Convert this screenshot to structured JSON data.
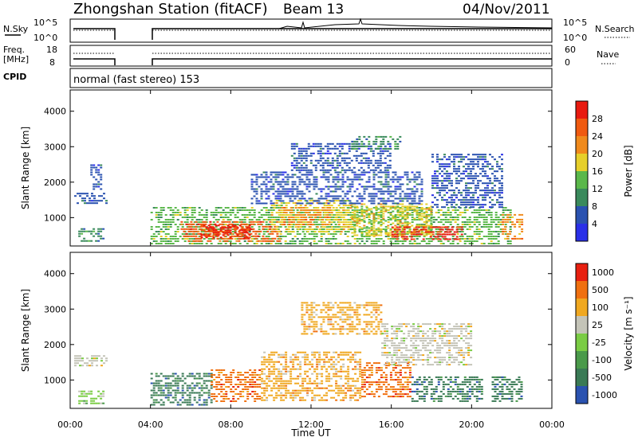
{
  "header": {
    "station_title": "Zhongshan Station (fitACF)",
    "beam": "Beam 13",
    "date": "04/Nov/2011"
  },
  "info_panels": {
    "nsky_label": "N.Sky",
    "nsky_ticks": [
      "10^5",
      "10^0"
    ],
    "nsearch_label": "N.Search",
    "nsearch_ticks": [
      "10^5",
      "10^0"
    ],
    "freq_label_1": "Freq.",
    "freq_label_2": "[MHz]",
    "freq_ticks": [
      "18",
      "8"
    ],
    "nave_label": "Nave",
    "nave_ticks": [
      "60",
      "0"
    ],
    "cpid_label": "CPID",
    "cpid_text": "normal (fast stereo) 153"
  },
  "colors": {
    "power": [
      "#2a30e8",
      "#2a52b0",
      "#3a8a5c",
      "#5ab84a",
      "#e6cf2a",
      "#f08a1c",
      "#f05a10",
      "#e81a10"
    ],
    "velocity": [
      "#2a52b0",
      "#3a7a55",
      "#4a9a4a",
      "#7acc44",
      "#c4c4b8",
      "#f0a820",
      "#f07010",
      "#e82010"
    ]
  },
  "chart_data": [
    {
      "type": "heatmap",
      "title": "Power",
      "ylabel": "Slant Range [km]",
      "xlabel": "",
      "x_ticks": [
        "00:00",
        "04:00",
        "08:00",
        "12:00",
        "16:00",
        "20:00",
        "00:00"
      ],
      "y_ticks": [
        "1000",
        "2000",
        "3000",
        "4000"
      ],
      "ylim": [
        200,
        4600
      ],
      "xlim_hours": [
        0,
        24
      ],
      "colorbar": {
        "label": "Power [dB]",
        "ticks": [
          "4",
          "8",
          "12",
          "16",
          "20",
          "24",
          "28"
        ],
        "range": [
          0,
          32
        ]
      },
      "regions": [
        {
          "start_hour": 0.2,
          "end_hour": 1.8,
          "range_low": 1400,
          "range_high": 1700,
          "level": 1
        },
        {
          "start_hour": 1.0,
          "end_hour": 1.5,
          "range_low": 1800,
          "range_high": 2500,
          "level": 1
        },
        {
          "start_hour": 0.4,
          "end_hour": 1.6,
          "range_low": 300,
          "range_high": 700,
          "level": 2
        },
        {
          "start_hour": 4.0,
          "end_hour": 22.0,
          "range_low": 250,
          "range_high": 1300,
          "level": 3
        },
        {
          "start_hour": 5.5,
          "end_hour": 10.5,
          "range_low": 300,
          "range_high": 900,
          "level": 6
        },
        {
          "start_hour": 6.5,
          "end_hour": 9.0,
          "range_low": 400,
          "range_high": 800,
          "level": 7
        },
        {
          "start_hour": 10.0,
          "end_hour": 14.0,
          "range_low": 600,
          "range_high": 1500,
          "level": 4
        },
        {
          "start_hour": 10.5,
          "end_hour": 13.0,
          "range_low": 800,
          "range_high": 1300,
          "level": 5
        },
        {
          "start_hour": 14.0,
          "end_hour": 18.0,
          "range_low": 500,
          "range_high": 1400,
          "level": 4
        },
        {
          "start_hour": 16.0,
          "end_hour": 19.5,
          "range_low": 350,
          "range_high": 750,
          "level": 7
        },
        {
          "start_hour": 9.0,
          "end_hour": 17.5,
          "range_low": 1400,
          "range_high": 2300,
          "level": 1
        },
        {
          "start_hour": 11.0,
          "end_hour": 16.0,
          "range_low": 2300,
          "range_high": 3100,
          "level": 1
        },
        {
          "start_hour": 14.0,
          "end_hour": 16.5,
          "range_low": 2900,
          "range_high": 3300,
          "level": 2
        },
        {
          "start_hour": 18.0,
          "end_hour": 21.5,
          "range_low": 1300,
          "range_high": 2800,
          "level": 1
        },
        {
          "start_hour": 21.5,
          "end_hour": 22.5,
          "range_low": 400,
          "range_high": 1100,
          "level": 5
        }
      ]
    },
    {
      "type": "heatmap",
      "title": "Velocity",
      "ylabel": "Slant Range [km]",
      "xlabel": "Time UT",
      "x_ticks": [
        "00:00",
        "04:00",
        "08:00",
        "12:00",
        "16:00",
        "20:00",
        "00:00"
      ],
      "y_ticks": [
        "1000",
        "2000",
        "3000",
        "4000"
      ],
      "ylim": [
        200,
        4600
      ],
      "xlim_hours": [
        0,
        24
      ],
      "colorbar": {
        "label": "Velocity [m s⁻¹]",
        "ticks": [
          "1000",
          "500",
          "100",
          "25",
          "-25",
          "-100",
          "-500",
          "-1000"
        ],
        "range": [
          -1500,
          1500
        ]
      },
      "regions": [
        {
          "start_hour": 0.2,
          "end_hour": 1.8,
          "range_low": 1400,
          "range_high": 1700,
          "level": 4
        },
        {
          "start_hour": 0.4,
          "end_hour": 1.6,
          "range_low": 300,
          "range_high": 700,
          "level": 3
        },
        {
          "start_hour": 4.0,
          "end_hour": 7.0,
          "range_low": 300,
          "range_high": 1200,
          "level": 1
        },
        {
          "start_hour": 7.0,
          "end_hour": 9.5,
          "range_low": 400,
          "range_high": 1300,
          "level": 6
        },
        {
          "start_hour": 9.5,
          "end_hour": 14.5,
          "range_low": 400,
          "range_high": 1800,
          "level": 5
        },
        {
          "start_hour": 14.5,
          "end_hour": 17.0,
          "range_low": 500,
          "range_high": 1500,
          "level": 6
        },
        {
          "start_hour": 17.0,
          "end_hour": 20.5,
          "range_low": 400,
          "range_high": 1100,
          "level": 1
        },
        {
          "start_hour": 11.5,
          "end_hour": 15.5,
          "range_low": 2300,
          "range_high": 3200,
          "level": 5
        },
        {
          "start_hour": 15.5,
          "end_hour": 20.0,
          "range_low": 1400,
          "range_high": 2600,
          "level": 4
        },
        {
          "start_hour": 21.0,
          "end_hour": 22.5,
          "range_low": 400,
          "range_high": 1100,
          "level": 1
        }
      ]
    }
  ]
}
